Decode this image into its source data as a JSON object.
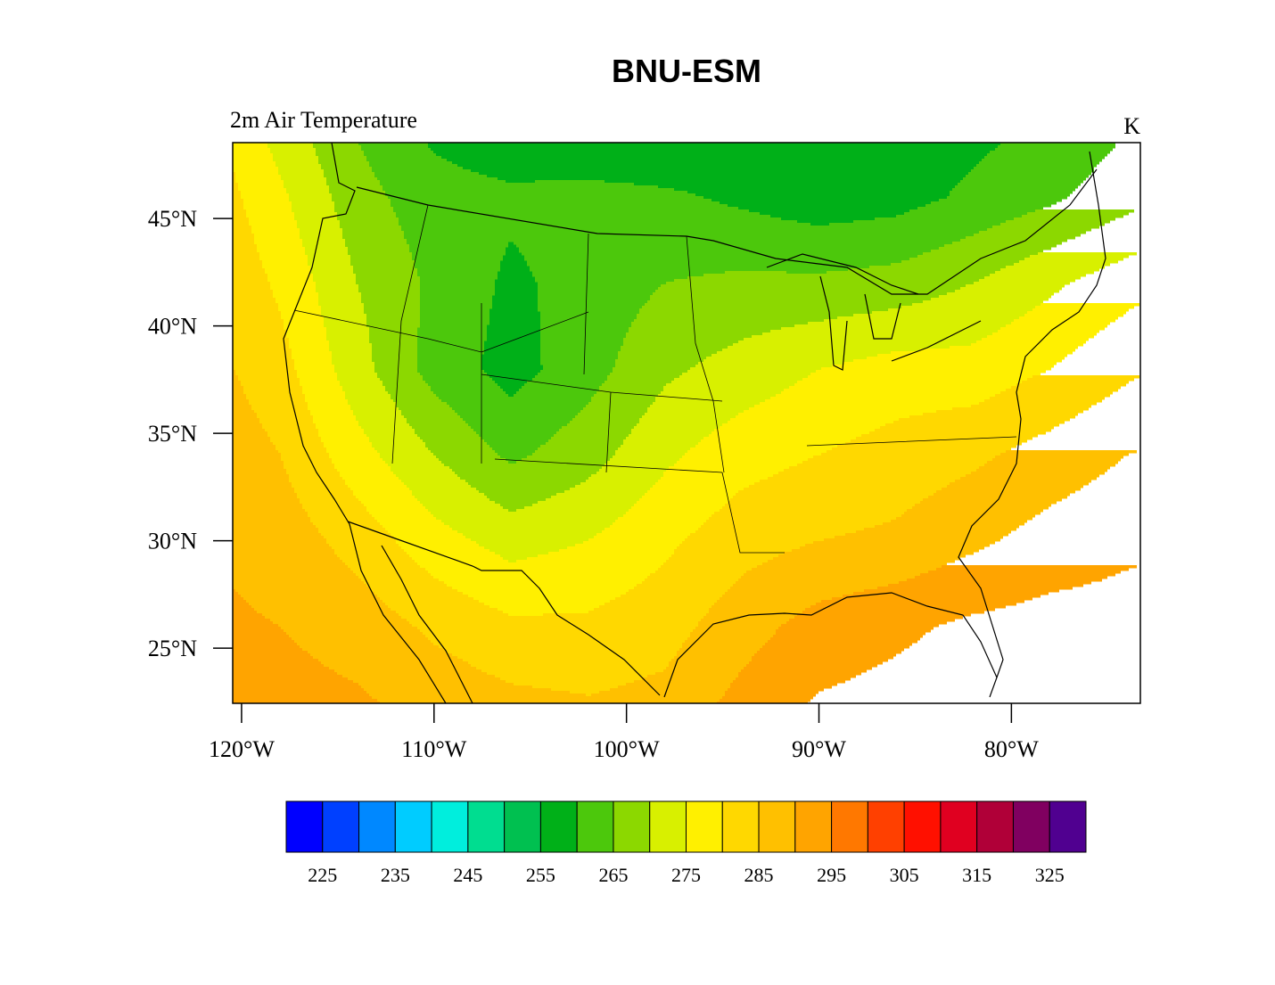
{
  "chart_data": {
    "type": "contour",
    "title": "BNU-ESM",
    "left_string": "2m Air Temperature",
    "right_string": "K",
    "xlim": [
      -120.46,
      -73.3
    ],
    "ylim": [
      22.43,
      48.53
    ],
    "xticks": [
      {
        "value": -120,
        "label": "120°W"
      },
      {
        "value": -110,
        "label": "110°W"
      },
      {
        "value": -100,
        "label": "100°W"
      },
      {
        "value": -90,
        "label": "90°W"
      },
      {
        "value": -80,
        "label": "80°W"
      }
    ],
    "yticks": [
      {
        "value": 45,
        "label": "45°N"
      },
      {
        "value": 40,
        "label": "40°N"
      },
      {
        "value": 35,
        "label": "35°N"
      },
      {
        "value": 30,
        "label": "30°N"
      },
      {
        "value": 25,
        "label": "25°N"
      }
    ],
    "grid_lon": [
      -122,
      -118,
      -114,
      -110,
      -106,
      -102,
      -98,
      -94,
      -90,
      -86,
      -82,
      -78,
      -74,
      -70
    ],
    "grid_lat": [
      50,
      46,
      42,
      38,
      34,
      30,
      26,
      22
    ],
    "field": [
      [
        282,
        272,
        264,
        258,
        255,
        252,
        252,
        254,
        256,
        257,
        258,
        260,
        264,
        268
      ],
      [
        284,
        276,
        267,
        262,
        261,
        262,
        261,
        259,
        257,
        258,
        261,
        264,
        268,
        272
      ],
      [
        286,
        279,
        270,
        264,
        259,
        262,
        265,
        266,
        266,
        267,
        270,
        274,
        278,
        281
      ],
      [
        287,
        282,
        272,
        263,
        258,
        263,
        269,
        272,
        275,
        277,
        277,
        280,
        284,
        287
      ],
      [
        289,
        285,
        277,
        270,
        264,
        268,
        274,
        278,
        280,
        282,
        284,
        287,
        290,
        292
      ],
      [
        290,
        288,
        283,
        277,
        273,
        275,
        279,
        283,
        285,
        286,
        289,
        292,
        294,
        295
      ],
      [
        291,
        290,
        288,
        284,
        281,
        281,
        283,
        288,
        292,
        294,
        296,
        297,
        297,
        297
      ],
      [
        292,
        292,
        291,
        289,
        287,
        286,
        287,
        292,
        296,
        297,
        298,
        299,
        299,
        299
      ]
    ],
    "levels": [
      225,
      230,
      235,
      240,
      245,
      250,
      255,
      260,
      265,
      270,
      275,
      280,
      285,
      290,
      295,
      300,
      305,
      310,
      315,
      320,
      325
    ],
    "colors": [
      "#0000ff",
      "#0040ff",
      "#0088ff",
      "#00ccff",
      "#00eedd",
      "#00dd90",
      "#00c050",
      "#00b018",
      "#4cc80c",
      "#8cd800",
      "#d8f000",
      "#fff000",
      "#ffd800",
      "#ffc000",
      "#ffa400",
      "#ff7800",
      "#ff4000",
      "#ff1000",
      "#e00020",
      "#b00038",
      "#800060",
      "#500090"
    ],
    "colorbar_ticks": [
      225,
      235,
      245,
      255,
      265,
      275,
      285,
      295,
      305,
      315,
      325
    ]
  }
}
